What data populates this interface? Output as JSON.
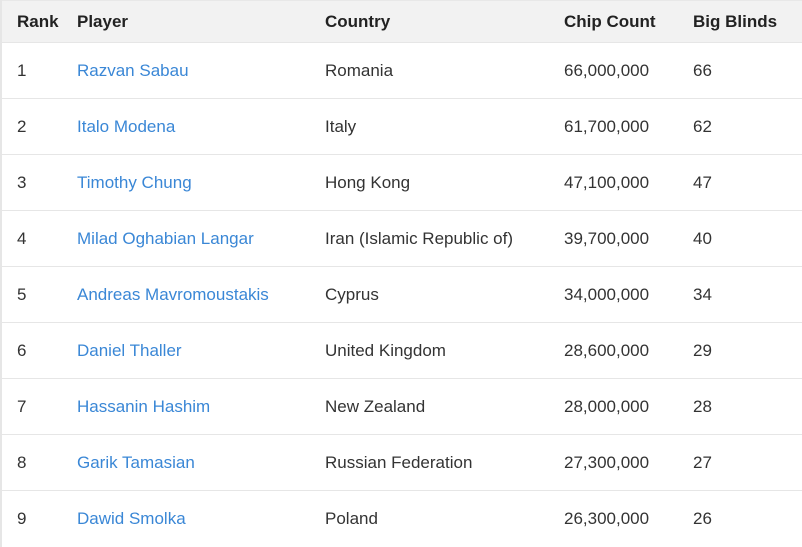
{
  "columns": [
    "Rank",
    "Player",
    "Country",
    "Chip Count",
    "Big Blinds"
  ],
  "colors": {
    "link": "#3a87d6",
    "header_bg": "#f2f2f2",
    "text": "#333333"
  },
  "rows": [
    {
      "rank": "1",
      "player": "Razvan Sabau",
      "country": "Romania",
      "chips": "66,000,000",
      "bb": "66"
    },
    {
      "rank": "2",
      "player": "Italo Modena",
      "country": "Italy",
      "chips": "61,700,000",
      "bb": "62"
    },
    {
      "rank": "3",
      "player": "Timothy Chung",
      "country": "Hong Kong",
      "chips": "47,100,000",
      "bb": "47"
    },
    {
      "rank": "4",
      "player": "Milad Oghabian Langar",
      "country": "Iran (Islamic Republic of)",
      "chips": "39,700,000",
      "bb": "40"
    },
    {
      "rank": "5",
      "player": "Andreas Mavromoustakis",
      "country": "Cyprus",
      "chips": "34,000,000",
      "bb": "34"
    },
    {
      "rank": "6",
      "player": "Daniel Thaller",
      "country": "United Kingdom",
      "chips": "28,600,000",
      "bb": "29"
    },
    {
      "rank": "7",
      "player": "Hassanin Hashim",
      "country": "New Zealand",
      "chips": "28,000,000",
      "bb": "28"
    },
    {
      "rank": "8",
      "player": "Garik Tamasian",
      "country": "Russian Federation",
      "chips": "27,300,000",
      "bb": "27"
    },
    {
      "rank": "9",
      "player": "Dawid Smolka",
      "country": "Poland",
      "chips": "26,300,000",
      "bb": "26"
    }
  ]
}
